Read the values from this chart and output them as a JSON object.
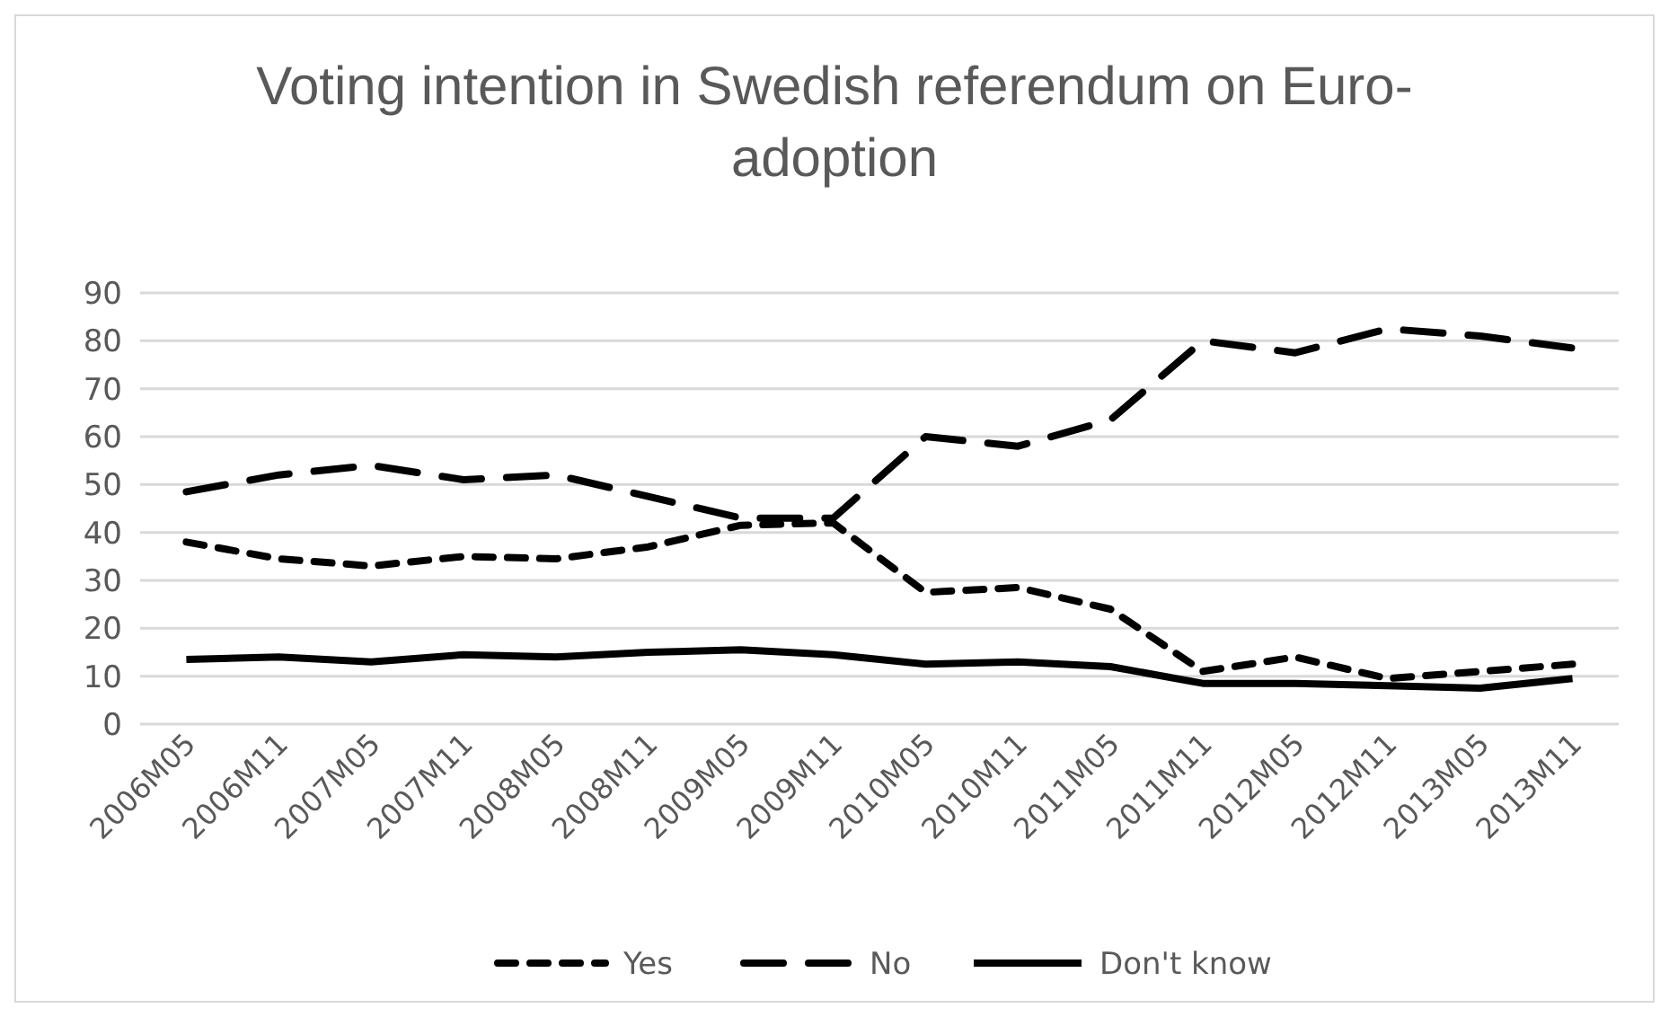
{
  "chart_data": {
    "type": "line",
    "title": "Voting intention in Swedish referendum on Euro-adoption",
    "categories": [
      "2006M05",
      "2006M11",
      "2007M05",
      "2007M11",
      "2008M05",
      "2008M11",
      "2009M05",
      "2009M11",
      "2010M05",
      "2010M11",
      "2011M05",
      "2011M11",
      "2012M05",
      "2012M11",
      "2013M05",
      "2013M11"
    ],
    "series": [
      {
        "name": "Yes",
        "color": "#000000",
        "line_style": "dotted",
        "values": [
          38,
          34.5,
          33,
          35,
          34.5,
          37,
          41.5,
          42,
          27.5,
          28.5,
          24,
          11,
          14,
          9.5,
          11,
          12.5
        ]
      },
      {
        "name": "No",
        "color": "#000000",
        "line_style": "dashed",
        "values": [
          48.5,
          52,
          54,
          51,
          52,
          47.5,
          43,
          43,
          60,
          58,
          63.5,
          80,
          77.5,
          82.5,
          81,
          78.5
        ]
      },
      {
        "name": "Don't know",
        "color": "#000000",
        "line_style": "solid",
        "values": [
          13.5,
          14,
          13,
          14.5,
          14,
          15,
          15.5,
          14.5,
          12.5,
          13,
          12,
          8.5,
          8.5,
          8,
          7.5,
          9.5
        ]
      }
    ],
    "ylim": [
      0,
      90
    ],
    "yticks": [
      0,
      10,
      20,
      30,
      40,
      50,
      60,
      70,
      80,
      90
    ],
    "grid": "y",
    "legend": "bottom",
    "marker": "none"
  }
}
